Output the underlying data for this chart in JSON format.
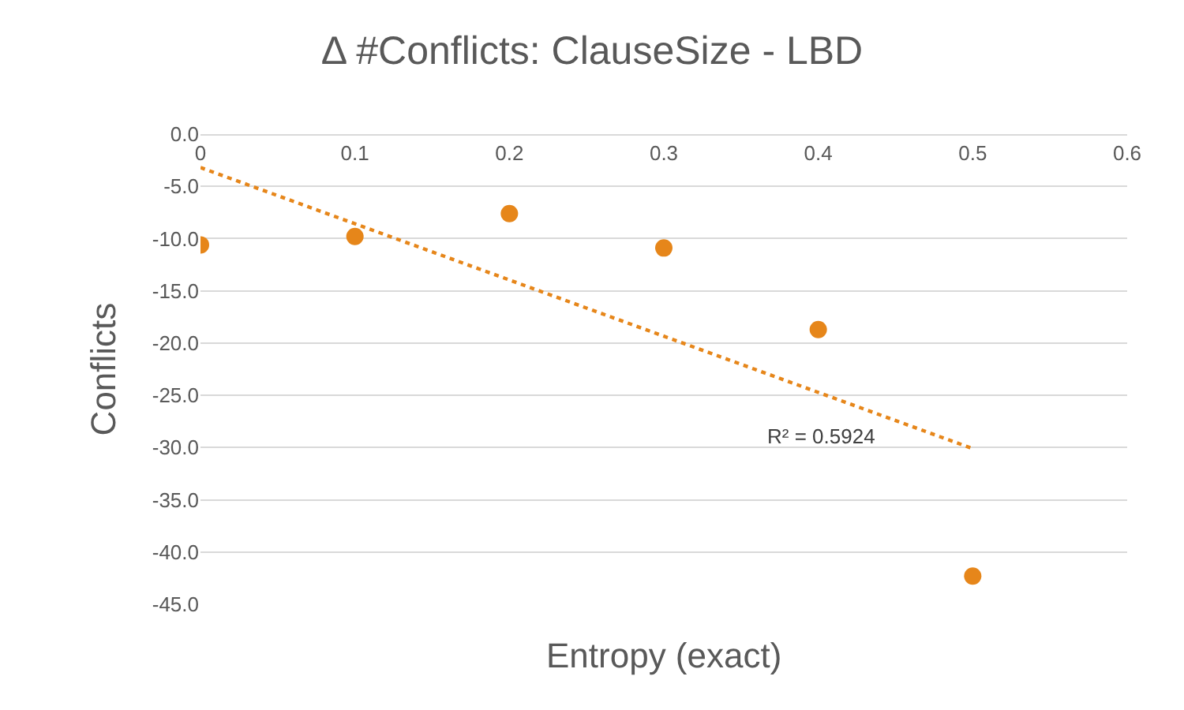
{
  "chart_data": {
    "type": "scatter",
    "title": "Δ #Conflicts: ClauseSize - LBD",
    "xlabel": "Entropy (exact)",
    "ylabel": "Conflicts",
    "series": [
      {
        "color": "#e6861a",
        "marker": "circle",
        "x": [
          0,
          0.1,
          0.2,
          0.3,
          0.4,
          0.5
        ],
        "values": [
          -10.6,
          -9.8,
          -7.6,
          -10.9,
          -18.7,
          -42.3
        ]
      },
      {
        "type": "line",
        "color": "#e6861a",
        "marker": "none",
        "line_style": "dotted",
        "x": [
          0,
          0.5
        ],
        "values": [
          -3.2,
          -30.1
        ]
      }
    ],
    "annotations": [
      "R² = 0.5924"
    ],
    "xlim": [
      0,
      0.6
    ],
    "xticks": [
      0,
      0.1,
      0.2,
      0.3,
      0.4,
      0.5,
      0.6
    ],
    "ylim": [
      -45,
      0
    ],
    "yticks": [
      {
        "value": 0,
        "label": "0.0"
      },
      {
        "value": -5,
        "label": "-5.0"
      },
      {
        "value": -10,
        "label": "-10.0"
      },
      {
        "value": -15,
        "label": "-15.0"
      },
      {
        "value": -20,
        "label": "-20.0"
      },
      {
        "value": -25,
        "label": "-25.0"
      },
      {
        "value": -30,
        "label": "-30.0"
      },
      {
        "value": -35,
        "label": "-35.0"
      },
      {
        "value": -40,
        "label": "-40.0"
      },
      {
        "value": -45,
        "label": "-45.0"
      }
    ],
    "grid": "y"
  }
}
